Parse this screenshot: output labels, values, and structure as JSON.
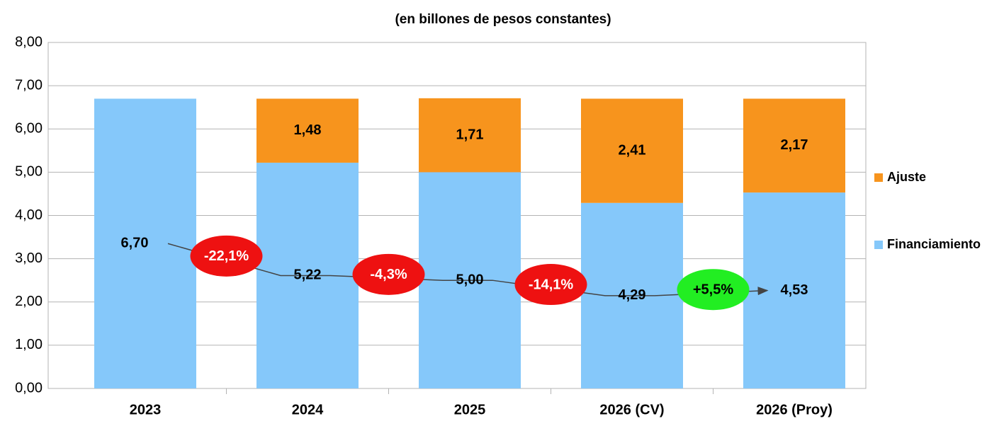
{
  "chart_data": {
    "type": "stacked_bar",
    "title": "(en billones de pesos constantes)",
    "categories": [
      "2023",
      "2024",
      "2025",
      "2026 (CV)",
      "2026 (Proy)"
    ],
    "series": [
      {
        "name": "Financiamiento",
        "color": "#85c8fa",
        "values": [
          6.7,
          5.22,
          5.0,
          4.29,
          4.53
        ],
        "value_labels": [
          "6,70",
          "5,22",
          "5,00",
          "4,29",
          "4,53"
        ]
      },
      {
        "name": "Ajuste",
        "color": "#f7941d",
        "values": [
          null,
          1.48,
          1.71,
          2.41,
          2.17
        ],
        "value_labels": [
          null,
          "1,48",
          "1,71",
          "2,41",
          "2,17"
        ]
      }
    ],
    "ylim": [
      0,
      8
    ],
    "yticks": [
      {
        "value": 0,
        "label": "0,00"
      },
      {
        "value": 1,
        "label": "1,00"
      },
      {
        "value": 2,
        "label": "2,00"
      },
      {
        "value": 3,
        "label": "3,00"
      },
      {
        "value": 4,
        "label": "4,00"
      },
      {
        "value": 5,
        "label": "5,00"
      },
      {
        "value": 6,
        "label": "6,00"
      },
      {
        "value": 7,
        "label": "7,00"
      },
      {
        "value": 8,
        "label": "8,00"
      }
    ],
    "grid": true,
    "legend": "right",
    "annotations": [
      {
        "text": "-22,1%",
        "color": "#ee1111",
        "text_color": "#ffffff"
      },
      {
        "text": "-4,3%",
        "color": "#ee1111",
        "text_color": "#ffffff"
      },
      {
        "text": "-14,1%",
        "color": "#ee1111",
        "text_color": "#ffffff"
      },
      {
        "text": "+5,5%",
        "color": "#22ee22",
        "text_color": "#000000"
      }
    ]
  }
}
